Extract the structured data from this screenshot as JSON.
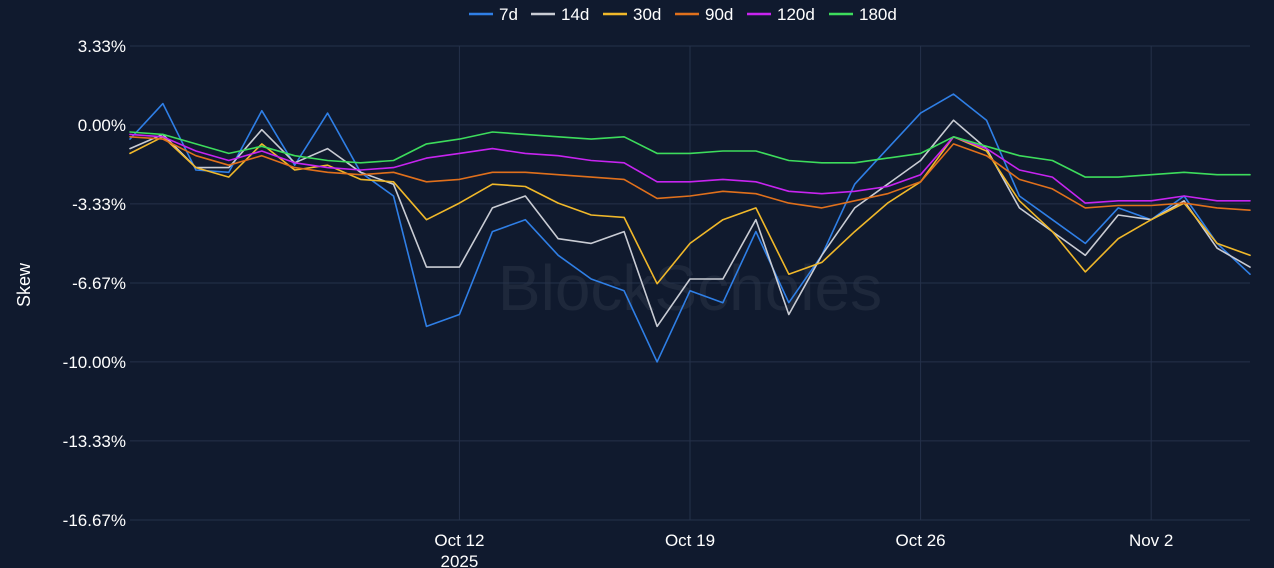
{
  "chart_data": {
    "type": "line",
    "title": "",
    "xlabel": "",
    "ylabel": "Skew",
    "watermark": "BlockScholes",
    "y_unit": "%",
    "ylim": [
      -16.67,
      3.33
    ],
    "yticks": [
      {
        "value": 3.33,
        "label": "3.33%"
      },
      {
        "value": 0.0,
        "label": "0.00%"
      },
      {
        "value": -3.33,
        "label": "-3.33%"
      },
      {
        "value": -6.67,
        "label": "-6.67%"
      },
      {
        "value": -10.0,
        "label": "-10.00%"
      },
      {
        "value": -13.33,
        "label": "-13.33%"
      },
      {
        "value": -16.67,
        "label": "-16.67%"
      }
    ],
    "xlim": [
      "2025-10-02",
      "2025-11-05"
    ],
    "xticks": [
      {
        "date": "2025-10-12",
        "label": "Oct 12",
        "sublabel": "2025"
      },
      {
        "date": "2025-10-19",
        "label": "Oct 19",
        "sublabel": ""
      },
      {
        "date": "2025-10-26",
        "label": "Oct 26",
        "sublabel": ""
      },
      {
        "date": "2025-11-02",
        "label": "Nov 2",
        "sublabel": ""
      }
    ],
    "grid": true,
    "legend_position": "top",
    "background": "#101a2e",
    "series": [
      {
        "name": "7d",
        "color": "#2f7fe6",
        "points": [
          [
            "2025-10-02",
            -0.6
          ],
          [
            "2025-10-03",
            0.9
          ],
          [
            "2025-10-04",
            -1.9
          ],
          [
            "2025-10-05",
            -2.0
          ],
          [
            "2025-10-06",
            0.6
          ],
          [
            "2025-10-07",
            -1.7
          ],
          [
            "2025-10-08",
            0.5
          ],
          [
            "2025-10-09",
            -2.0
          ],
          [
            "2025-10-10",
            -3.0
          ],
          [
            "2025-10-11",
            -8.5
          ],
          [
            "2025-10-12",
            -8.0
          ],
          [
            "2025-10-13",
            -4.5
          ],
          [
            "2025-10-14",
            -4.0
          ],
          [
            "2025-10-15",
            -5.5
          ],
          [
            "2025-10-16",
            -6.5
          ],
          [
            "2025-10-17",
            -7.0
          ],
          [
            "2025-10-18",
            -10.0
          ],
          [
            "2025-10-19",
            -7.0
          ],
          [
            "2025-10-20",
            -7.5
          ],
          [
            "2025-10-21",
            -4.5
          ],
          [
            "2025-10-22",
            -7.5
          ],
          [
            "2025-10-23",
            -5.5
          ],
          [
            "2025-10-24",
            -2.5
          ],
          [
            "2025-10-25",
            -1.0
          ],
          [
            "2025-10-26",
            0.5
          ],
          [
            "2025-10-27",
            1.3
          ],
          [
            "2025-10-28",
            0.2
          ],
          [
            "2025-10-29",
            -3.0
          ],
          [
            "2025-10-30",
            -4.0
          ],
          [
            "2025-10-31",
            -5.0
          ],
          [
            "2025-11-01",
            -3.5
          ],
          [
            "2025-11-02",
            -4.0
          ],
          [
            "2025-11-03",
            -3.0
          ],
          [
            "2025-11-04",
            -5.0
          ],
          [
            "2025-11-05",
            -6.3
          ]
        ]
      },
      {
        "name": "14d",
        "color": "#c9ccd4",
        "points": [
          [
            "2025-10-02",
            -1.0
          ],
          [
            "2025-10-03",
            -0.4
          ],
          [
            "2025-10-04",
            -1.8
          ],
          [
            "2025-10-05",
            -1.8
          ],
          [
            "2025-10-06",
            -0.2
          ],
          [
            "2025-10-07",
            -1.6
          ],
          [
            "2025-10-08",
            -1.0
          ],
          [
            "2025-10-09",
            -2.0
          ],
          [
            "2025-10-10",
            -2.5
          ],
          [
            "2025-10-11",
            -6.0
          ],
          [
            "2025-10-12",
            -6.0
          ],
          [
            "2025-10-13",
            -3.5
          ],
          [
            "2025-10-14",
            -3.0
          ],
          [
            "2025-10-15",
            -4.8
          ],
          [
            "2025-10-16",
            -5.0
          ],
          [
            "2025-10-17",
            -4.5
          ],
          [
            "2025-10-18",
            -8.5
          ],
          [
            "2025-10-19",
            -6.5
          ],
          [
            "2025-10-20",
            -6.5
          ],
          [
            "2025-10-21",
            -4.0
          ],
          [
            "2025-10-22",
            -8.0
          ],
          [
            "2025-10-23",
            -5.5
          ],
          [
            "2025-10-24",
            -3.5
          ],
          [
            "2025-10-25",
            -2.5
          ],
          [
            "2025-10-26",
            -1.5
          ],
          [
            "2025-10-27",
            0.2
          ],
          [
            "2025-10-28",
            -1.0
          ],
          [
            "2025-10-29",
            -3.5
          ],
          [
            "2025-10-30",
            -4.5
          ],
          [
            "2025-10-31",
            -5.5
          ],
          [
            "2025-11-01",
            -3.8
          ],
          [
            "2025-11-02",
            -4.0
          ],
          [
            "2025-11-03",
            -3.2
          ],
          [
            "2025-11-04",
            -5.2
          ],
          [
            "2025-11-05",
            -6.0
          ]
        ]
      },
      {
        "name": "30d",
        "color": "#f0b82a",
        "points": [
          [
            "2025-10-02",
            -1.2
          ],
          [
            "2025-10-03",
            -0.5
          ],
          [
            "2025-10-04",
            -1.8
          ],
          [
            "2025-10-05",
            -2.2
          ],
          [
            "2025-10-06",
            -0.8
          ],
          [
            "2025-10-07",
            -1.9
          ],
          [
            "2025-10-08",
            -1.7
          ],
          [
            "2025-10-09",
            -2.3
          ],
          [
            "2025-10-10",
            -2.4
          ],
          [
            "2025-10-11",
            -4.0
          ],
          [
            "2025-10-12",
            -3.3
          ],
          [
            "2025-10-13",
            -2.5
          ],
          [
            "2025-10-14",
            -2.6
          ],
          [
            "2025-10-15",
            -3.3
          ],
          [
            "2025-10-16",
            -3.8
          ],
          [
            "2025-10-17",
            -3.9
          ],
          [
            "2025-10-18",
            -6.7
          ],
          [
            "2025-10-19",
            -5.0
          ],
          [
            "2025-10-20",
            -4.0
          ],
          [
            "2025-10-21",
            -3.5
          ],
          [
            "2025-10-22",
            -6.3
          ],
          [
            "2025-10-23",
            -5.8
          ],
          [
            "2025-10-24",
            -4.5
          ],
          [
            "2025-10-25",
            -3.3
          ],
          [
            "2025-10-26",
            -2.4
          ],
          [
            "2025-10-27",
            -0.5
          ],
          [
            "2025-10-28",
            -1.1
          ],
          [
            "2025-10-29",
            -3.2
          ],
          [
            "2025-10-30",
            -4.5
          ],
          [
            "2025-10-31",
            -6.2
          ],
          [
            "2025-11-01",
            -4.8
          ],
          [
            "2025-11-02",
            -4.0
          ],
          [
            "2025-11-03",
            -3.3
          ],
          [
            "2025-11-04",
            -5.0
          ],
          [
            "2025-11-05",
            -5.5
          ]
        ]
      },
      {
        "name": "90d",
        "color": "#e0701c",
        "points": [
          [
            "2025-10-02",
            -0.5
          ],
          [
            "2025-10-03",
            -0.6
          ],
          [
            "2025-10-04",
            -1.3
          ],
          [
            "2025-10-05",
            -1.7
          ],
          [
            "2025-10-06",
            -1.3
          ],
          [
            "2025-10-07",
            -1.8
          ],
          [
            "2025-10-08",
            -2.0
          ],
          [
            "2025-10-09",
            -2.1
          ],
          [
            "2025-10-10",
            -2.0
          ],
          [
            "2025-10-11",
            -2.4
          ],
          [
            "2025-10-12",
            -2.3
          ],
          [
            "2025-10-13",
            -2.0
          ],
          [
            "2025-10-14",
            -2.0
          ],
          [
            "2025-10-15",
            -2.1
          ],
          [
            "2025-10-16",
            -2.2
          ],
          [
            "2025-10-17",
            -2.3
          ],
          [
            "2025-10-18",
            -3.1
          ],
          [
            "2025-10-19",
            -3.0
          ],
          [
            "2025-10-20",
            -2.8
          ],
          [
            "2025-10-21",
            -2.9
          ],
          [
            "2025-10-22",
            -3.3
          ],
          [
            "2025-10-23",
            -3.5
          ],
          [
            "2025-10-24",
            -3.2
          ],
          [
            "2025-10-25",
            -2.9
          ],
          [
            "2025-10-26",
            -2.4
          ],
          [
            "2025-10-27",
            -0.8
          ],
          [
            "2025-10-28",
            -1.3
          ],
          [
            "2025-10-29",
            -2.3
          ],
          [
            "2025-10-30",
            -2.7
          ],
          [
            "2025-10-31",
            -3.5
          ],
          [
            "2025-11-01",
            -3.4
          ],
          [
            "2025-11-02",
            -3.4
          ],
          [
            "2025-11-03",
            -3.3
          ],
          [
            "2025-11-04",
            -3.5
          ],
          [
            "2025-11-05",
            -3.6
          ]
        ]
      },
      {
        "name": "120d",
        "color": "#c724f0",
        "points": [
          [
            "2025-10-02",
            -0.4
          ],
          [
            "2025-10-03",
            -0.5
          ],
          [
            "2025-10-04",
            -1.1
          ],
          [
            "2025-10-05",
            -1.5
          ],
          [
            "2025-10-06",
            -1.1
          ],
          [
            "2025-10-07",
            -1.6
          ],
          [
            "2025-10-08",
            -1.8
          ],
          [
            "2025-10-09",
            -1.9
          ],
          [
            "2025-10-10",
            -1.8
          ],
          [
            "2025-10-11",
            -1.4
          ],
          [
            "2025-10-12",
            -1.2
          ],
          [
            "2025-10-13",
            -1.0
          ],
          [
            "2025-10-14",
            -1.2
          ],
          [
            "2025-10-15",
            -1.3
          ],
          [
            "2025-10-16",
            -1.5
          ],
          [
            "2025-10-17",
            -1.6
          ],
          [
            "2025-10-18",
            -2.4
          ],
          [
            "2025-10-19",
            -2.4
          ],
          [
            "2025-10-20",
            -2.3
          ],
          [
            "2025-10-21",
            -2.4
          ],
          [
            "2025-10-22",
            -2.8
          ],
          [
            "2025-10-23",
            -2.9
          ],
          [
            "2025-10-24",
            -2.8
          ],
          [
            "2025-10-25",
            -2.6
          ],
          [
            "2025-10-26",
            -2.1
          ],
          [
            "2025-10-27",
            -0.5
          ],
          [
            "2025-10-28",
            -1.0
          ],
          [
            "2025-10-29",
            -1.9
          ],
          [
            "2025-10-30",
            -2.2
          ],
          [
            "2025-10-31",
            -3.3
          ],
          [
            "2025-11-01",
            -3.2
          ],
          [
            "2025-11-02",
            -3.2
          ],
          [
            "2025-11-03",
            -3.0
          ],
          [
            "2025-11-04",
            -3.2
          ],
          [
            "2025-11-05",
            -3.2
          ]
        ]
      },
      {
        "name": "180d",
        "color": "#3ddc5c",
        "points": [
          [
            "2025-10-02",
            -0.3
          ],
          [
            "2025-10-03",
            -0.4
          ],
          [
            "2025-10-04",
            -0.8
          ],
          [
            "2025-10-05",
            -1.2
          ],
          [
            "2025-10-06",
            -0.9
          ],
          [
            "2025-10-07",
            -1.3
          ],
          [
            "2025-10-08",
            -1.5
          ],
          [
            "2025-10-09",
            -1.6
          ],
          [
            "2025-10-10",
            -1.5
          ],
          [
            "2025-10-11",
            -0.8
          ],
          [
            "2025-10-12",
            -0.6
          ],
          [
            "2025-10-13",
            -0.3
          ],
          [
            "2025-10-14",
            -0.4
          ],
          [
            "2025-10-15",
            -0.5
          ],
          [
            "2025-10-16",
            -0.6
          ],
          [
            "2025-10-17",
            -0.5
          ],
          [
            "2025-10-18",
            -1.2
          ],
          [
            "2025-10-19",
            -1.2
          ],
          [
            "2025-10-20",
            -1.1
          ],
          [
            "2025-10-21",
            -1.1
          ],
          [
            "2025-10-22",
            -1.5
          ],
          [
            "2025-10-23",
            -1.6
          ],
          [
            "2025-10-24",
            -1.6
          ],
          [
            "2025-10-25",
            -1.4
          ],
          [
            "2025-10-26",
            -1.2
          ],
          [
            "2025-10-27",
            -0.5
          ],
          [
            "2025-10-28",
            -0.9
          ],
          [
            "2025-10-29",
            -1.3
          ],
          [
            "2025-10-30",
            -1.5
          ],
          [
            "2025-10-31",
            -2.2
          ],
          [
            "2025-11-01",
            -2.2
          ],
          [
            "2025-11-02",
            -2.1
          ],
          [
            "2025-11-03",
            -2.0
          ],
          [
            "2025-11-04",
            -2.1
          ],
          [
            "2025-11-05",
            -2.1
          ]
        ]
      }
    ]
  }
}
